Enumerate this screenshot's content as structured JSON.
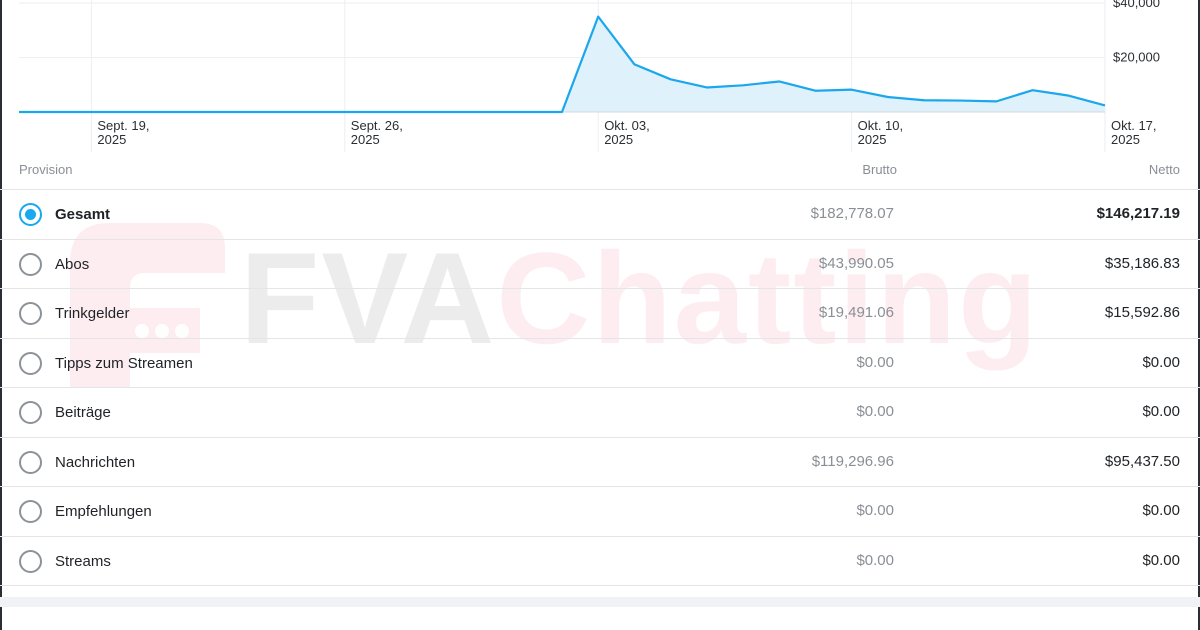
{
  "chart_data": {
    "type": "area",
    "x_ticks": [
      {
        "line1": "Sept. 19,",
        "line2": "2025"
      },
      {
        "line1": "Sept. 26,",
        "line2": "2025"
      },
      {
        "line1": "Okt. 03,",
        "line2": "2025"
      },
      {
        "line1": "Okt. 10,",
        "line2": "2025"
      },
      {
        "line1": "Okt. 17,",
        "line2": "2025"
      }
    ],
    "y_ticks": [
      "$40,000",
      "$20,000"
    ],
    "y_tick_values": [
      40000,
      20000
    ],
    "ylim": [
      0,
      40000
    ],
    "x": [
      "2025-09-17",
      "2025-09-18",
      "2025-09-19",
      "2025-09-20",
      "2025-09-21",
      "2025-09-22",
      "2025-09-23",
      "2025-09-24",
      "2025-09-25",
      "2025-09-26",
      "2025-09-27",
      "2025-09-28",
      "2025-09-29",
      "2025-09-30",
      "2025-10-01",
      "2025-10-02",
      "2025-10-03",
      "2025-10-04",
      "2025-10-05",
      "2025-10-06",
      "2025-10-07",
      "2025-10-08",
      "2025-10-09",
      "2025-10-10",
      "2025-10-11",
      "2025-10-12",
      "2025-10-13",
      "2025-10-14",
      "2025-10-15",
      "2025-10-16",
      "2025-10-17"
    ],
    "series": [
      {
        "values": [
          0,
          0,
          0,
          0,
          0,
          0,
          0,
          0,
          0,
          0,
          0,
          0,
          0,
          0,
          0,
          0,
          0,
          0,
          0,
          0,
          0,
          0,
          0,
          0,
          0,
          0,
          0,
          0,
          0,
          0,
          0
        ],
        "area_values": [
          0,
          0,
          0,
          0,
          0,
          0,
          0,
          0,
          0,
          0,
          0,
          0,
          0,
          0,
          0,
          0,
          35000,
          17500,
          12000,
          9000,
          9800,
          11200,
          7800,
          8200,
          5500,
          4300,
          4200,
          3900,
          8000,
          6000,
          2400
        ]
      }
    ],
    "line_color": "#1aa7ec",
    "fill_color": "#dff1fa",
    "grid": true
  },
  "table": {
    "headers": {
      "provision": "Provision",
      "brutto": "Brutto",
      "netto": "Netto"
    },
    "rows": [
      {
        "label": "Gesamt",
        "brutto": "$182,778.07",
        "netto": "$146,217.19",
        "selected": true
      },
      {
        "label": "Abos",
        "brutto": "$43,990.05",
        "netto": "$35,186.83",
        "selected": false
      },
      {
        "label": "Trinkgelder",
        "brutto": "$19,491.06",
        "netto": "$15,592.86",
        "selected": false
      },
      {
        "label": "Tipps zum Streamen",
        "brutto": "$0.00",
        "netto": "$0.00",
        "selected": false
      },
      {
        "label": "Beiträge",
        "brutto": "$0.00",
        "netto": "$0.00",
        "selected": false
      },
      {
        "label": "Nachrichten",
        "brutto": "$119,296.96",
        "netto": "$95,437.50",
        "selected": false
      },
      {
        "label": "Empfehlungen",
        "brutto": "$0.00",
        "netto": "$0.00",
        "selected": false
      },
      {
        "label": "Streams",
        "brutto": "$0.00",
        "netto": "$0.00",
        "selected": false
      }
    ]
  },
  "watermark": {
    "part1": "FVA",
    "part2": "Chatting"
  },
  "colors": {
    "accent": "#18a9ee",
    "watermark_pink": "#f0506e"
  }
}
